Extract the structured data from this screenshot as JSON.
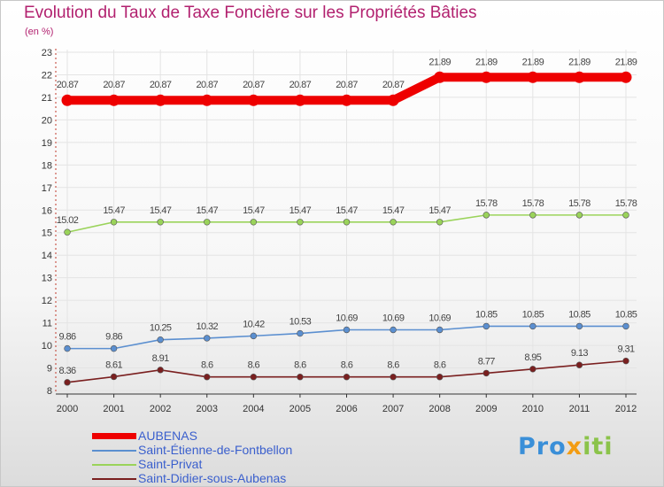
{
  "title": "Evolution du Taux de Taxe Foncière sur les Propriétés Bâties",
  "unit_label": "(en %)",
  "logo": {
    "parts": [
      "Pro",
      "x",
      "iti"
    ],
    "colors": [
      "#3a8fd8",
      "#f39c12",
      "#8bc34a"
    ]
  },
  "chart_data": {
    "type": "line",
    "title": "Evolution du Taux de Taxe Foncière sur les Propriétés Bâties",
    "ylabel": "(en %)",
    "xlabel": "",
    "x": [
      "2000",
      "2001",
      "2002",
      "2003",
      "2004",
      "2005",
      "2006",
      "2007",
      "2008",
      "2009",
      "2010",
      "2011",
      "2012"
    ],
    "ylim": [
      8,
      23
    ],
    "yticks": [
      "8",
      "9",
      "10",
      "11",
      "12",
      "13",
      "14",
      "15",
      "16",
      "17",
      "18",
      "19",
      "20",
      "21",
      "22",
      "23"
    ],
    "legend_position": "bottom-left",
    "series": [
      {
        "name": "AUBENAS",
        "color": "#ee0000",
        "values": [
          20.87,
          20.87,
          20.87,
          20.87,
          20.87,
          20.87,
          20.87,
          20.87,
          21.89,
          21.89,
          21.89,
          21.89,
          21.89
        ],
        "labels": [
          "20.87",
          "20.87",
          "20.87",
          "20.87",
          "20.87",
          "20.87",
          "20.87",
          "20.87",
          "21.89",
          "21.89",
          "21.89",
          "21.89",
          "21.89"
        ]
      },
      {
        "name": "Saint-Étienne-de-Fontbellon",
        "color": "#5b8fd0",
        "values": [
          9.86,
          9.86,
          10.25,
          10.32,
          10.42,
          10.53,
          10.69,
          10.69,
          10.69,
          10.85,
          10.85,
          10.85,
          10.85
        ],
        "labels": [
          "9.86",
          "9.86",
          "10.25",
          "10.32",
          "10.42",
          "10.53",
          "10.69",
          "10.69",
          "10.69",
          "10.85",
          "10.85",
          "10.85",
          "10.85"
        ]
      },
      {
        "name": "Saint-Privat",
        "color": "#9ad35a",
        "values": [
          15.02,
          15.47,
          15.47,
          15.47,
          15.47,
          15.47,
          15.47,
          15.47,
          15.47,
          15.78,
          15.78,
          15.78,
          15.78
        ],
        "labels": [
          "15.02",
          "15.47",
          "15.47",
          "15.47",
          "15.47",
          "15.47",
          "15.47",
          "15.47",
          "15.47",
          "15.78",
          "15.78",
          "15.78",
          "15.78"
        ]
      },
      {
        "name": "Saint-Didier-sous-Aubenas",
        "color": "#7a1f1f",
        "values": [
          8.36,
          8.61,
          8.91,
          8.6,
          8.6,
          8.6,
          8.6,
          8.6,
          8.6,
          8.77,
          8.95,
          9.13,
          9.31
        ],
        "labels": [
          "8.36",
          "8.61",
          "8.91",
          "8.6",
          "8.6",
          "8.6",
          "8.6",
          "8.6",
          "8.6",
          "8.77",
          "8.95",
          "9.13",
          "9.31"
        ]
      }
    ]
  }
}
